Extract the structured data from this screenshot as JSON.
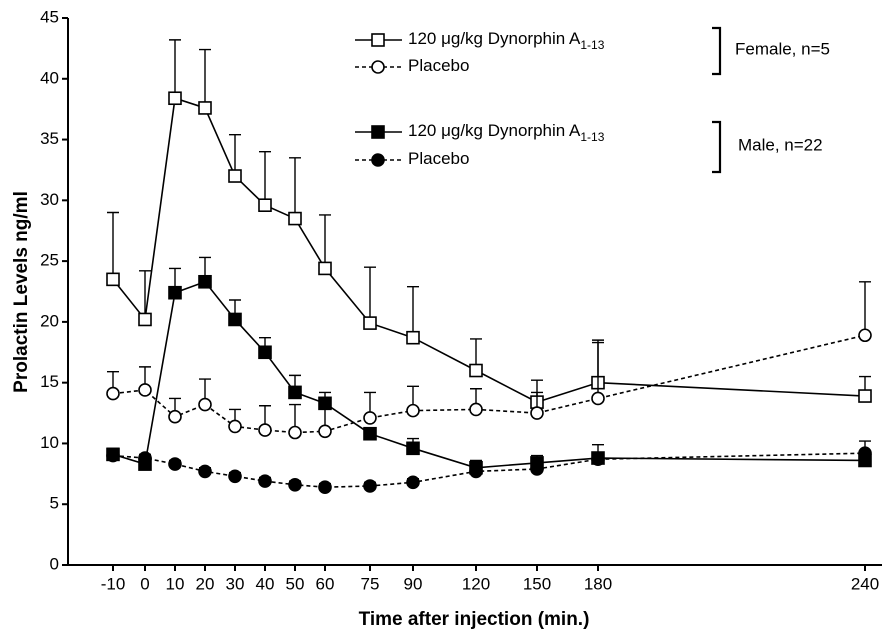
{
  "chart_data": {
    "type": "line",
    "x_label": "Time after injection (min.)",
    "y_label": "Prolactin Levels ng/ml",
    "categories": [
      "-10",
      "0",
      "10",
      "20",
      "30",
      "40",
      "50",
      "60",
      "75",
      "90",
      "120",
      "150",
      "180",
      "240"
    ],
    "ylim": [
      0,
      45
    ],
    "yticks": [
      0,
      5,
      10,
      15,
      20,
      25,
      30,
      35,
      40,
      45
    ],
    "legend_groups": [
      "Female, n=5",
      "Male, n=22"
    ],
    "series": [
      {
        "name": "120 μg/kg Dynorphin A",
        "subscript": "1-13",
        "group": 0,
        "marker": "square",
        "filled": false,
        "dashed": false,
        "color": "#000000",
        "values": [
          23.5,
          20.2,
          38.4,
          37.6,
          32.0,
          29.6,
          28.5,
          24.4,
          19.9,
          18.7,
          16.0,
          13.4,
          15.0,
          13.9
        ],
        "errors": [
          5.5,
          4.0,
          4.8,
          4.8,
          3.4,
          4.4,
          5.0,
          4.4,
          4.6,
          4.2,
          2.6,
          1.8,
          3.3,
          1.6
        ]
      },
      {
        "name": "Placebo",
        "group": 0,
        "marker": "circle",
        "filled": false,
        "dashed": true,
        "color": "#000000",
        "values": [
          14.1,
          14.4,
          12.2,
          13.2,
          11.4,
          11.1,
          10.9,
          11.0,
          12.1,
          12.7,
          12.8,
          12.5,
          13.7,
          18.9
        ],
        "errors": [
          1.8,
          1.9,
          1.5,
          2.1,
          1.4,
          2.0,
          2.3,
          2.7,
          2.1,
          2.0,
          1.7,
          1.7,
          4.8,
          4.4
        ]
      },
      {
        "name": "120 μg/kg Dynorphin A",
        "subscript": "1-13",
        "group": 1,
        "marker": "square",
        "filled": true,
        "dashed": false,
        "color": "#000000",
        "values": [
          9.1,
          8.3,
          22.4,
          23.3,
          20.2,
          17.5,
          14.2,
          13.3,
          10.8,
          9.6,
          8.0,
          8.4,
          8.8,
          8.6
        ],
        "errors": [
          0.5,
          0.6,
          2.0,
          2.0,
          1.6,
          1.2,
          1.4,
          0.9,
          0.5,
          0.8,
          0.6,
          0.6,
          1.1,
          0.8
        ]
      },
      {
        "name": "Placebo",
        "group": 1,
        "marker": "circle",
        "filled": true,
        "dashed": true,
        "color": "#000000",
        "values": [
          9.0,
          8.8,
          8.3,
          7.7,
          7.3,
          6.9,
          6.6,
          6.4,
          6.5,
          6.8,
          7.7,
          7.9,
          8.7,
          9.2
        ],
        "errors": [
          0.3,
          0.3,
          0.3,
          0.3,
          0.3,
          0.3,
          0.3,
          0.3,
          0.3,
          0.3,
          0.3,
          0.3,
          0.3,
          1.0
        ]
      }
    ]
  }
}
